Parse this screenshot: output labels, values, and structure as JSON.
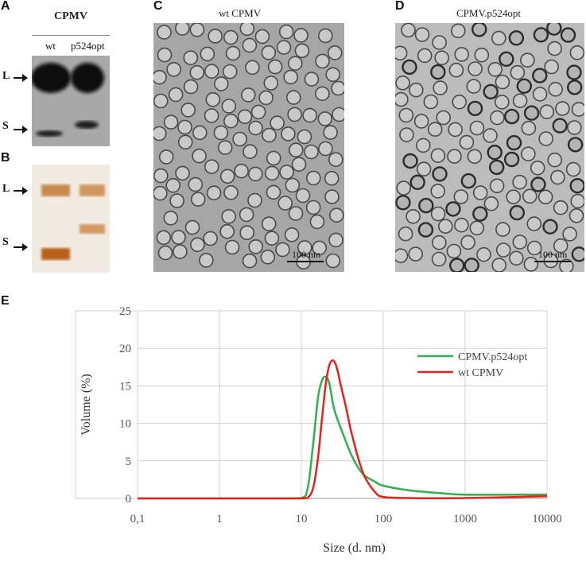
{
  "panel_a": {
    "letter": "A",
    "title": "CPMV",
    "lanes": [
      "wt",
      "p524opt"
    ],
    "band_labels": [
      "L",
      "S"
    ]
  },
  "panel_b": {
    "letter": "B",
    "band_labels": [
      "L",
      "S"
    ]
  },
  "panel_c": {
    "letter": "C",
    "title": "wt CPMV",
    "scale_bar": "100 nm"
  },
  "panel_d": {
    "letter": "D",
    "title": "CPMV.p524opt",
    "scale_bar": "100 nm"
  },
  "panel_e": {
    "letter": "E"
  },
  "chart_data": {
    "type": "line",
    "xlabel": "Size (d. nm)",
    "ylabel": "Volume (%)",
    "x_scale": "log",
    "xlim": [
      0.1,
      10000
    ],
    "ylim": [
      0,
      25
    ],
    "x_tick_labels": [
      "0,1",
      "1",
      "10",
      "100",
      "1000",
      "10000"
    ],
    "x_tick_values": [
      0.1,
      1,
      10,
      100,
      1000,
      10000
    ],
    "y_ticks": [
      0,
      5,
      10,
      15,
      20,
      25
    ],
    "grid": true,
    "legend_position": "right",
    "series": [
      {
        "name": "CPMV.p524opt",
        "color": "#2db34a",
        "x": [
          0.1,
          1,
          5,
          10,
          12,
          14,
          16,
          18,
          20,
          22,
          25,
          30,
          35,
          40,
          50,
          60,
          80,
          100,
          200,
          500,
          1000,
          5000,
          10000
        ],
        "y": [
          0.0,
          0.0,
          0.0,
          0.05,
          1.5,
          7.5,
          13.5,
          15.8,
          16.2,
          15.3,
          12.0,
          9.5,
          7.6,
          6.0,
          4.0,
          3.0,
          2.2,
          1.7,
          1.1,
          0.7,
          0.5,
          0.5,
          0.5
        ]
      },
      {
        "name": "wt CPMV",
        "color": "#e8211c",
        "x": [
          0.1,
          1,
          5,
          10,
          12,
          14,
          16,
          18,
          20,
          22,
          24,
          26,
          28,
          30,
          35,
          40,
          50,
          60,
          80,
          100,
          200,
          1000,
          10000
        ],
        "y": [
          0.0,
          0.0,
          0.0,
          0.0,
          0.1,
          1.5,
          5.5,
          11.0,
          15.5,
          17.8,
          18.4,
          18.0,
          16.8,
          15.3,
          12.2,
          9.2,
          5.2,
          2.8,
          0.8,
          0.2,
          0.05,
          0.05,
          0.3
        ]
      }
    ]
  }
}
